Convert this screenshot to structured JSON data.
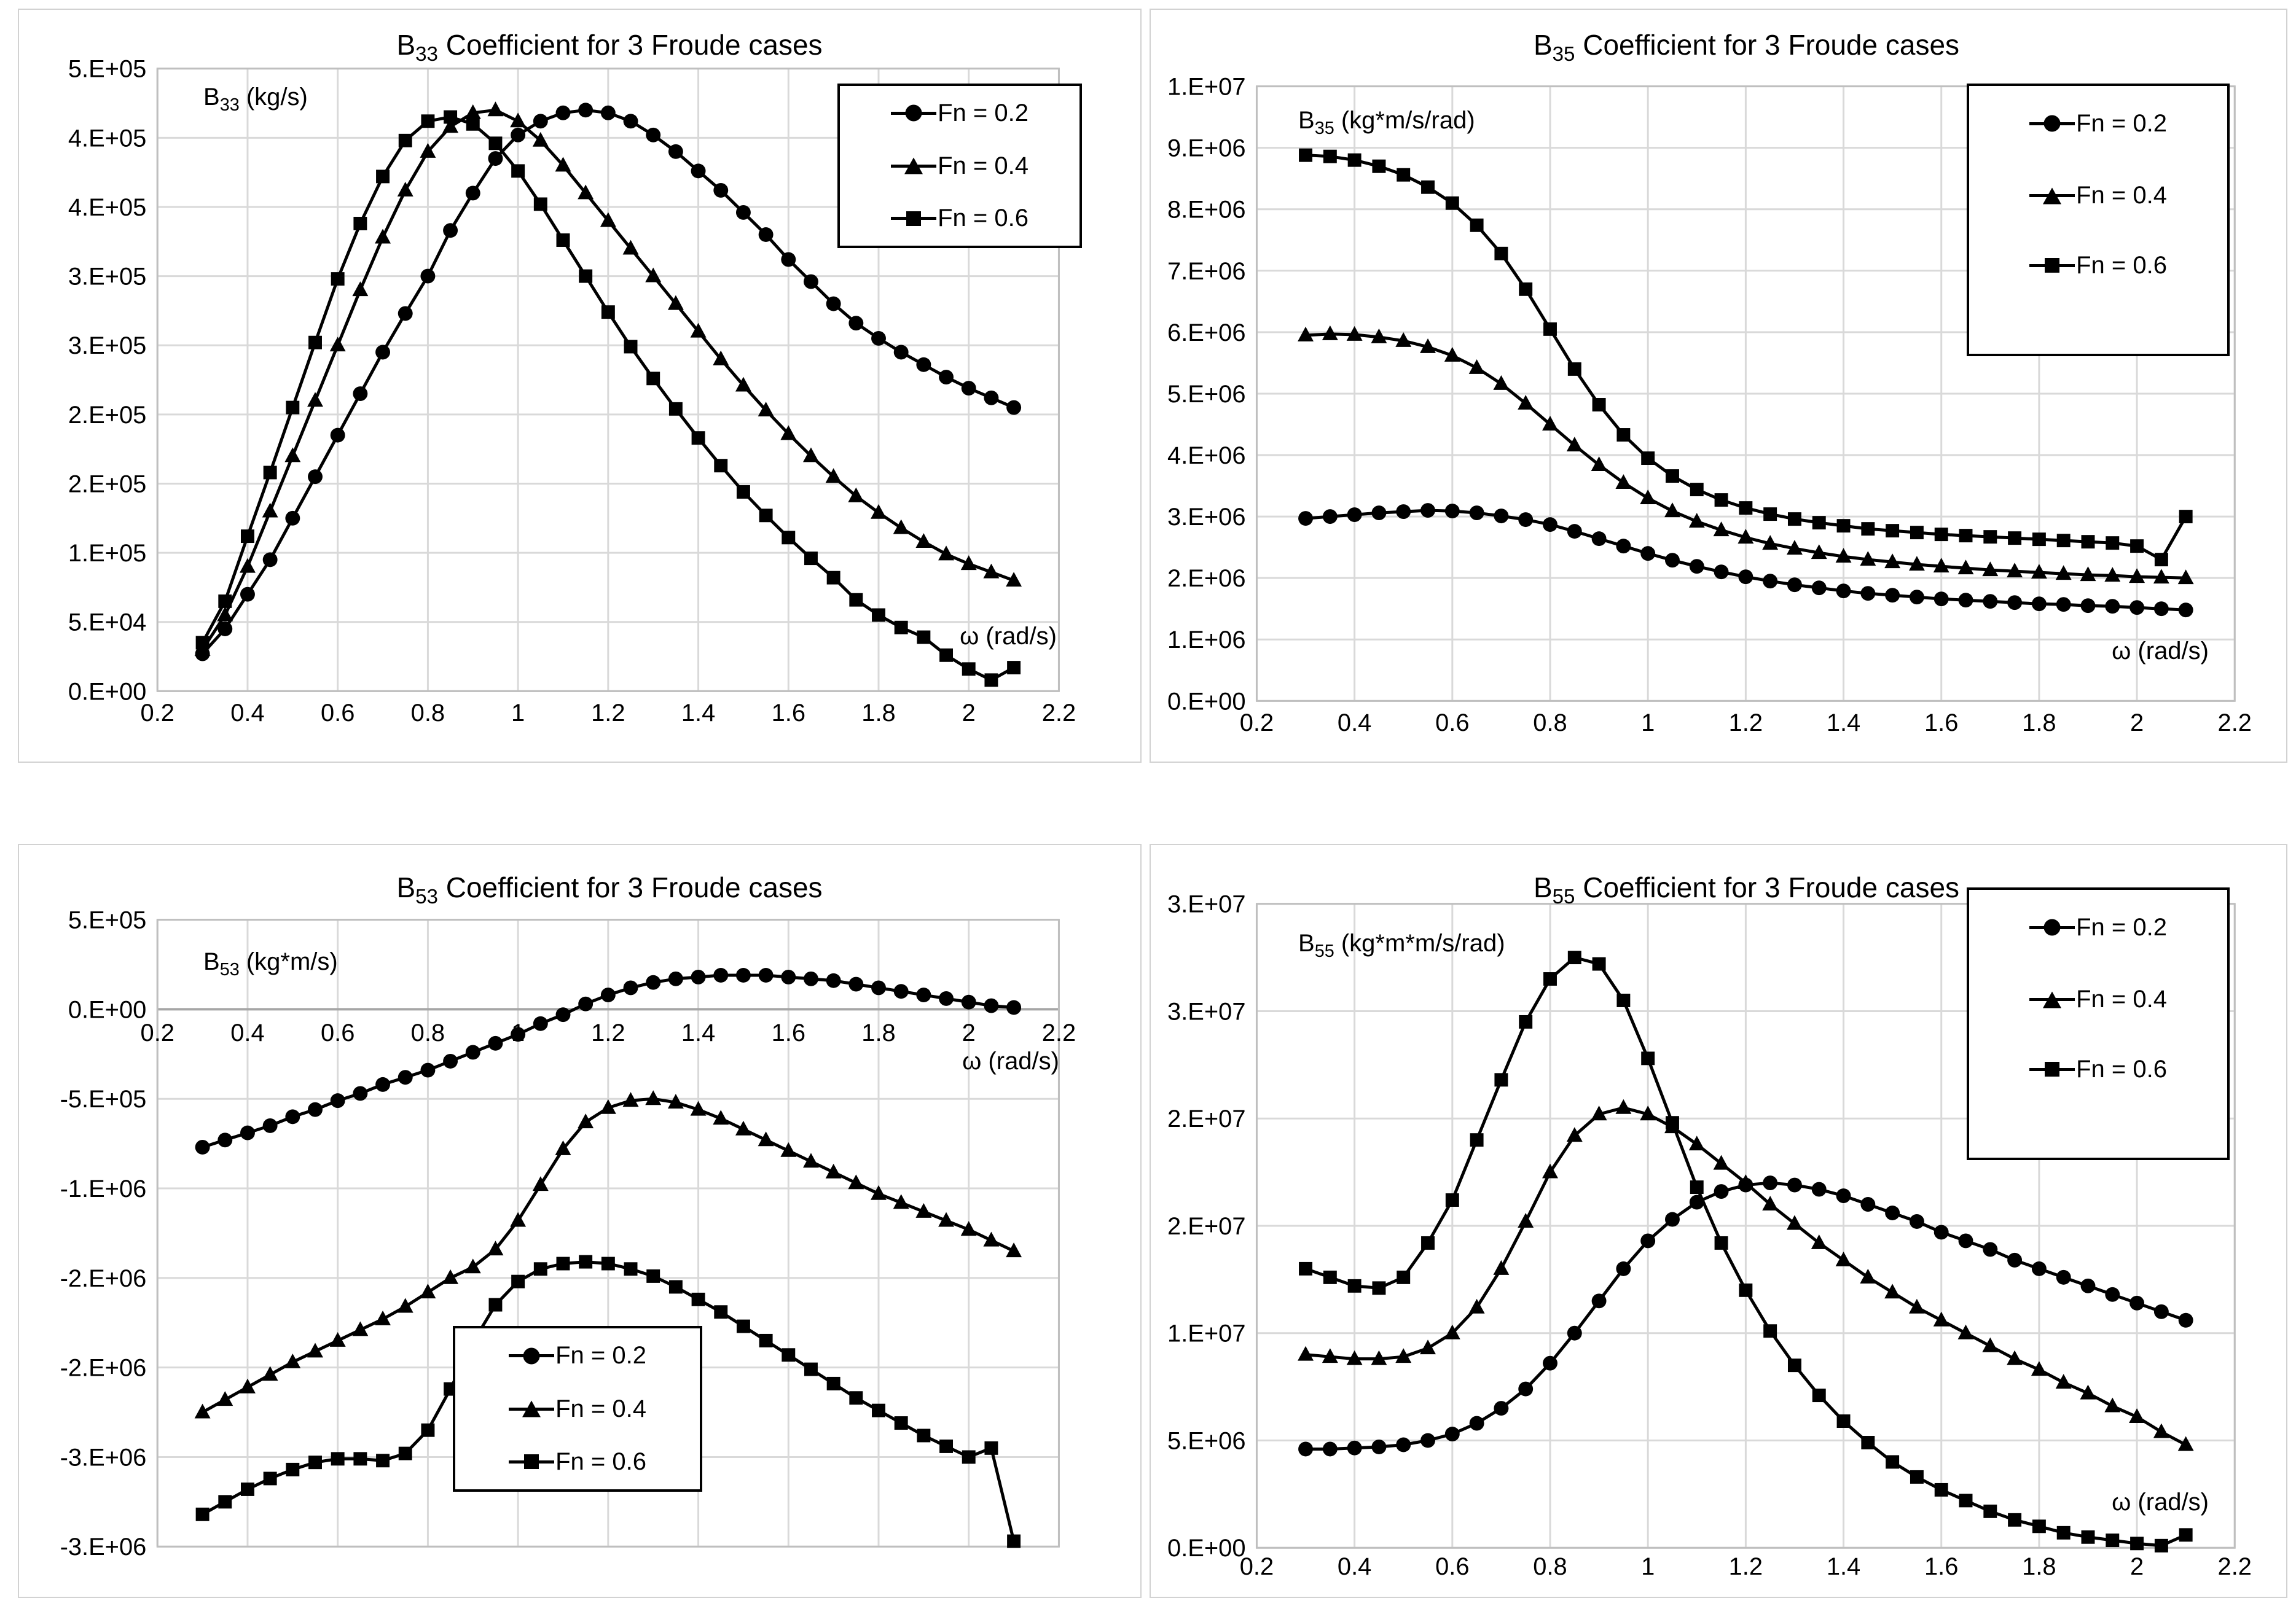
{
  "colors": {
    "series": "#000000",
    "gridline": "#d9d9d9",
    "plot_border": "#bfbfbf",
    "zero_axis": "#a6a6a6",
    "background": "#ffffff"
  },
  "chart_data": [
    {
      "id": "b33",
      "type": "line",
      "title": {
        "prefix": "B",
        "sub": "33",
        "rest": " Coefficient for 3 Froude cases"
      },
      "y_caption": {
        "prefix": "B",
        "sub": "33",
        "rest": " (kg/s)"
      },
      "x_label": "ω (rad/s)",
      "x_range": [
        0.2,
        2.2
      ],
      "x_ticks": [
        "0.2",
        "0.4",
        "0.6",
        "0.8",
        "1",
        "1.2",
        "1.4",
        "1.6",
        "1.8",
        "2",
        "2.2"
      ],
      "y_range": [
        0,
        450000
      ],
      "y_tick_labels": [
        "5.E+05",
        "4.E+05",
        "4.E+05",
        "3.E+05",
        "3.E+05",
        "2.E+05",
        "2.E+05",
        "1.E+05",
        "5.E+04",
        "0.E+00"
      ],
      "grid": true,
      "legend_position": "top-right",
      "x": [
        0.3,
        0.35,
        0.4,
        0.45,
        0.5,
        0.55,
        0.6,
        0.65,
        0.7,
        0.75,
        0.8,
        0.85,
        0.9,
        0.95,
        1,
        1.05,
        1.1,
        1.15,
        1.2,
        1.25,
        1.3,
        1.35,
        1.4,
        1.45,
        1.5,
        1.55,
        1.6,
        1.65,
        1.7,
        1.75,
        1.8,
        1.85,
        1.9,
        1.95,
        2,
        2.05,
        2.1
      ],
      "series": [
        {
          "name": "Fn = 0.2",
          "marker": "circle",
          "values": [
            27000,
            45000,
            70000,
            95000,
            125000,
            155000,
            185000,
            215000,
            245000,
            273000,
            300000,
            333000,
            360000,
            385000,
            402000,
            412000,
            418000,
            420000,
            418000,
            412000,
            402000,
            390000,
            376000,
            362000,
            346000,
            330000,
            312000,
            296000,
            280000,
            266000,
            255000,
            245000,
            236000,
            227000,
            219000,
            212000,
            205000
          ]
        },
        {
          "name": "Fn = 0.4",
          "marker": "triangle",
          "values": [
            30000,
            55000,
            90000,
            130000,
            170000,
            210000,
            250000,
            290000,
            328000,
            362000,
            390000,
            408000,
            418000,
            420000,
            412000,
            398000,
            380000,
            360000,
            340000,
            320000,
            300000,
            280000,
            260000,
            240000,
            221000,
            203000,
            186000,
            170000,
            155000,
            141000,
            129000,
            118000,
            108000,
            99000,
            92000,
            86000,
            80000
          ]
        },
        {
          "name": "Fn = 0.6",
          "marker": "square",
          "values": [
            35000,
            65000,
            112000,
            158000,
            205000,
            252000,
            298000,
            338000,
            372000,
            398000,
            412000,
            415000,
            410000,
            396000,
            376000,
            352000,
            326000,
            300000,
            274000,
            249000,
            226000,
            204000,
            183000,
            163000,
            144000,
            127000,
            111000,
            96000,
            82000,
            66000,
            55000,
            46000,
            39000,
            26000,
            16000,
            8000,
            17000
          ]
        }
      ]
    },
    {
      "id": "b35",
      "type": "line",
      "title": {
        "prefix": "B",
        "sub": "35",
        "rest": " Coefficient for 3 Froude cases"
      },
      "y_caption": {
        "prefix": "B",
        "sub": "35",
        "rest": " (kg*m/s/rad)"
      },
      "x_label": "ω (rad/s)",
      "x_range": [
        0.2,
        2.2
      ],
      "x_ticks": [
        "0.2",
        "0.4",
        "0.6",
        "0.8",
        "1",
        "1.2",
        "1.4",
        "1.6",
        "1.8",
        "2",
        "2.2"
      ],
      "y_range": [
        0,
        10000000
      ],
      "y_tick_labels": [
        "1.E+07",
        "9.E+06",
        "8.E+06",
        "7.E+06",
        "6.E+06",
        "5.E+06",
        "4.E+06",
        "3.E+06",
        "2.E+06",
        "1.E+06",
        "0.E+00"
      ],
      "grid": true,
      "legend_position": "top-right",
      "x": [
        0.3,
        0.35,
        0.4,
        0.45,
        0.5,
        0.55,
        0.6,
        0.65,
        0.7,
        0.75,
        0.8,
        0.85,
        0.9,
        0.95,
        1,
        1.05,
        1.1,
        1.15,
        1.2,
        1.25,
        1.3,
        1.35,
        1.4,
        1.45,
        1.5,
        1.55,
        1.6,
        1.65,
        1.7,
        1.75,
        1.8,
        1.85,
        1.9,
        1.95,
        2,
        2.05,
        2.1
      ],
      "series": [
        {
          "name": "Fn = 0.2",
          "marker": "circle",
          "values": [
            2970000,
            3000000,
            3030000,
            3060000,
            3080000,
            3100000,
            3090000,
            3060000,
            3010000,
            2950000,
            2870000,
            2760000,
            2640000,
            2520000,
            2400000,
            2290000,
            2190000,
            2100000,
            2020000,
            1950000,
            1890000,
            1840000,
            1790000,
            1750000,
            1720000,
            1690000,
            1660000,
            1640000,
            1620000,
            1600000,
            1580000,
            1570000,
            1550000,
            1540000,
            1520000,
            1500000,
            1480000
          ]
        },
        {
          "name": "Fn = 0.4",
          "marker": "triangle",
          "values": [
            5950000,
            5970000,
            5960000,
            5920000,
            5860000,
            5760000,
            5620000,
            5420000,
            5160000,
            4840000,
            4500000,
            4160000,
            3840000,
            3550000,
            3300000,
            3090000,
            2920000,
            2780000,
            2660000,
            2560000,
            2480000,
            2410000,
            2350000,
            2300000,
            2260000,
            2220000,
            2190000,
            2160000,
            2130000,
            2110000,
            2090000,
            2070000,
            2050000,
            2040000,
            2020000,
            2010000,
            2000000
          ]
        },
        {
          "name": "Fn = 0.6",
          "marker": "square",
          "values": [
            8880000,
            8860000,
            8800000,
            8700000,
            8560000,
            8360000,
            8100000,
            7740000,
            7280000,
            6700000,
            6050000,
            5400000,
            4820000,
            4330000,
            3950000,
            3660000,
            3440000,
            3270000,
            3140000,
            3040000,
            2960000,
            2900000,
            2850000,
            2800000,
            2770000,
            2740000,
            2710000,
            2690000,
            2670000,
            2650000,
            2630000,
            2610000,
            2590000,
            2570000,
            2520000,
            2300000,
            3000000
          ]
        }
      ]
    },
    {
      "id": "b53",
      "type": "line",
      "title": {
        "prefix": "B",
        "sub": "53",
        "rest": " Coefficient for 3 Froude cases"
      },
      "y_caption": {
        "prefix": "B",
        "sub": "53",
        "rest": " (kg*m/s)"
      },
      "x_label": "ω (rad/s)",
      "x_range": [
        0.2,
        2.2
      ],
      "x_ticks": [
        "0.2",
        "0.4",
        "0.6",
        "0.8",
        "1",
        "1.2",
        "1.4",
        "1.6",
        "1.8",
        "2",
        "2.2"
      ],
      "y_range": [
        -3000000,
        500000
      ],
      "y_tick_labels": [
        "5.E+05",
        "0.E+00",
        "-5.E+05",
        "-1.E+06",
        "-2.E+06",
        "-2.E+06",
        "-3.E+06",
        "-3.E+06"
      ],
      "grid": true,
      "x_labels_at_zero": true,
      "legend_position": "bottom-center",
      "x": [
        0.3,
        0.35,
        0.4,
        0.45,
        0.5,
        0.55,
        0.6,
        0.65,
        0.7,
        0.75,
        0.8,
        0.85,
        0.9,
        0.95,
        1,
        1.05,
        1.1,
        1.15,
        1.2,
        1.25,
        1.3,
        1.35,
        1.4,
        1.45,
        1.5,
        1.55,
        1.6,
        1.65,
        1.7,
        1.75,
        1.8,
        1.85,
        1.9,
        1.95,
        2,
        2.05,
        2.1
      ],
      "series": [
        {
          "name": "Fn = 0.2",
          "marker": "circle",
          "values": [
            -770000,
            -730000,
            -690000,
            -650000,
            -600000,
            -560000,
            -510000,
            -470000,
            -420000,
            -380000,
            -340000,
            -290000,
            -240000,
            -190000,
            -140000,
            -80000,
            -30000,
            30000,
            80000,
            120000,
            150000,
            170000,
            180000,
            190000,
            190000,
            190000,
            180000,
            170000,
            160000,
            140000,
            120000,
            100000,
            80000,
            60000,
            40000,
            20000,
            10000
          ]
        },
        {
          "name": "Fn = 0.4",
          "marker": "triangle",
          "values": [
            -2250000,
            -2180000,
            -2110000,
            -2040000,
            -1970000,
            -1910000,
            -1850000,
            -1790000,
            -1730000,
            -1660000,
            -1580000,
            -1500000,
            -1440000,
            -1340000,
            -1180000,
            -980000,
            -780000,
            -630000,
            -550000,
            -510000,
            -500000,
            -520000,
            -560000,
            -610000,
            -670000,
            -730000,
            -790000,
            -850000,
            -910000,
            -970000,
            -1030000,
            -1080000,
            -1130000,
            -1180000,
            -1230000,
            -1290000,
            -1350000
          ]
        },
        {
          "name": "Fn = 0.6",
          "marker": "square",
          "values": [
            -2820000,
            -2750000,
            -2680000,
            -2620000,
            -2570000,
            -2530000,
            -2510000,
            -2510000,
            -2520000,
            -2480000,
            -2350000,
            -2120000,
            -1860000,
            -1650000,
            -1520000,
            -1450000,
            -1420000,
            -1410000,
            -1420000,
            -1450000,
            -1490000,
            -1550000,
            -1620000,
            -1690000,
            -1770000,
            -1850000,
            -1930000,
            -2010000,
            -2090000,
            -2170000,
            -2240000,
            -2310000,
            -2380000,
            -2440000,
            -2500000,
            -2450000,
            -2970000
          ]
        }
      ]
    },
    {
      "id": "b55",
      "type": "line",
      "title": {
        "prefix": "B",
        "sub": "55",
        "rest": " Coefficient for 3 Froude cases"
      },
      "y_caption": {
        "prefix": "B",
        "sub": "55",
        "rest": " (kg*m*m/s/rad)"
      },
      "x_label": "ω (rad/s)",
      "x_range": [
        0.2,
        2.2
      ],
      "x_ticks": [
        "0.2",
        "0.4",
        "0.6",
        "0.8",
        "1",
        "1.2",
        "1.4",
        "1.6",
        "1.8",
        "2",
        "2.2"
      ],
      "y_range": [
        0,
        30000000
      ],
      "y_tick_labels": [
        "3.E+07",
        "3.E+07",
        "2.E+07",
        "2.E+07",
        "1.E+07",
        "5.E+06",
        "0.E+00"
      ],
      "grid": true,
      "legend_position": "top-right",
      "x": [
        0.3,
        0.35,
        0.4,
        0.45,
        0.5,
        0.55,
        0.6,
        0.65,
        0.7,
        0.75,
        0.8,
        0.85,
        0.9,
        0.95,
        1,
        1.05,
        1.1,
        1.15,
        1.2,
        1.25,
        1.3,
        1.35,
        1.4,
        1.45,
        1.5,
        1.55,
        1.6,
        1.65,
        1.7,
        1.75,
        1.8,
        1.85,
        1.9,
        1.95,
        2,
        2.05,
        2.1
      ],
      "series": [
        {
          "name": "Fn = 0.2",
          "marker": "circle",
          "values": [
            4600000,
            4600000,
            4650000,
            4700000,
            4800000,
            5000000,
            5300000,
            5800000,
            6500000,
            7400000,
            8600000,
            10000000,
            11500000,
            13000000,
            14300000,
            15300000,
            16100000,
            16600000,
            16900000,
            17000000,
            16900000,
            16700000,
            16400000,
            16000000,
            15600000,
            15200000,
            14700000,
            14300000,
            13900000,
            13400000,
            13000000,
            12600000,
            12200000,
            11800000,
            11400000,
            11000000,
            10600000
          ]
        },
        {
          "name": "Fn = 0.4",
          "marker": "triangle",
          "values": [
            9000000,
            8900000,
            8800000,
            8800000,
            8900000,
            9300000,
            10000000,
            11200000,
            13000000,
            15200000,
            17500000,
            19200000,
            20200000,
            20500000,
            20200000,
            19600000,
            18800000,
            17900000,
            17000000,
            16000000,
            15100000,
            14200000,
            13400000,
            12600000,
            11900000,
            11200000,
            10600000,
            10000000,
            9400000,
            8800000,
            8300000,
            7700000,
            7200000,
            6600000,
            6100000,
            5400000,
            4800000
          ]
        },
        {
          "name": "Fn = 0.6",
          "marker": "square",
          "values": [
            13000000,
            12600000,
            12200000,
            12100000,
            12600000,
            14200000,
            16200000,
            19000000,
            21800000,
            24500000,
            26500000,
            27500000,
            27200000,
            25500000,
            22800000,
            19800000,
            16800000,
            14200000,
            12000000,
            10100000,
            8500000,
            7100000,
            5900000,
            4900000,
            4000000,
            3300000,
            2700000,
            2200000,
            1700000,
            1300000,
            1000000,
            700000,
            500000,
            350000,
            200000,
            100000,
            600000
          ]
        }
      ]
    }
  ]
}
